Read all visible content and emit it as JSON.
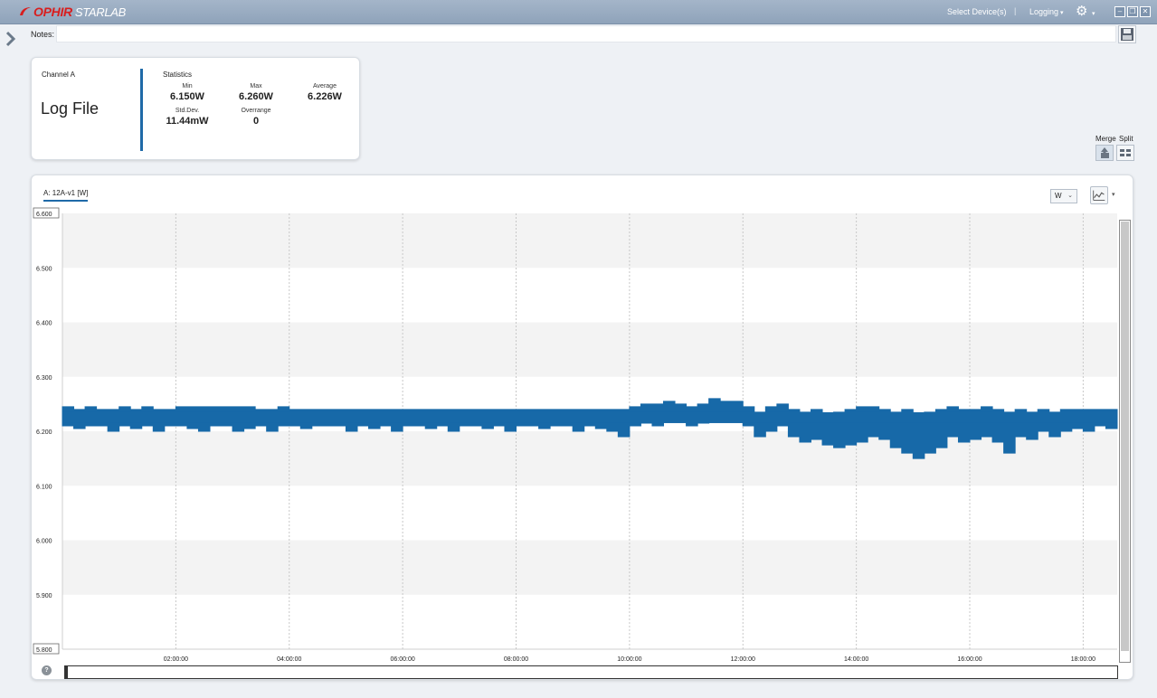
{
  "titlebar": {
    "brand": "OPHIR",
    "product": "STARLAB",
    "select_devices": "Select Device(s)",
    "separator": "|",
    "logging": "Logging",
    "caret": "▾",
    "minimize": "–",
    "restore": "❐",
    "close": "✕"
  },
  "notes": {
    "label": "Notes:",
    "value": ""
  },
  "stats_card": {
    "channel_label": "Channel A",
    "source": "Log File",
    "statistics_title": "Statistics",
    "min_label": "Min",
    "min_value": "6.150W",
    "max_label": "Max",
    "max_value": "6.260W",
    "average_label": "Average",
    "average_value": "6.226W",
    "std_label": "Std.Dev.",
    "std_value": "11.44mW",
    "overrange_label": "Overrange",
    "overrange_value": "0"
  },
  "view_mode": {
    "merge_label": "Merge",
    "split_label": "Split"
  },
  "graph": {
    "channel_tab": "A: 12A-v1 [W]",
    "unit": "W",
    "unit_caret": "⌄",
    "help": "?",
    "plot_type_caret": "▾"
  },
  "colors": {
    "series": "#1769a8",
    "band": "#f3f3f3",
    "accent": "#1f6aa8"
  },
  "chart_data": {
    "type": "line",
    "series": [
      {
        "x": [
          0,
          0.2,
          0.4,
          0.6,
          0.8,
          1.0,
          1.2,
          1.4,
          1.6,
          1.8,
          2.0,
          2.2,
          2.4,
          2.6,
          2.8,
          3.0,
          3.2,
          3.4,
          3.6,
          3.8,
          4.0,
          4.2,
          4.4,
          4.6,
          4.8,
          5.0,
          5.2,
          5.4,
          5.6,
          5.8,
          6.0,
          6.2,
          6.4,
          6.6,
          6.8,
          7.0,
          7.2,
          7.4,
          7.6,
          7.8,
          8.0,
          8.2,
          8.4,
          8.6,
          8.8,
          9.0,
          9.2,
          9.4,
          9.6,
          9.8,
          10.0,
          10.2,
          10.4,
          10.6,
          10.8,
          11.0,
          11.2,
          11.4,
          11.6,
          11.8,
          12.0,
          12.2,
          12.4,
          12.6,
          12.8,
          13.0,
          13.2,
          13.4,
          13.6,
          13.8,
          14.0,
          14.2,
          14.4,
          14.6,
          14.8,
          15.0,
          15.2,
          15.4,
          15.6,
          15.8,
          16.0,
          16.2,
          16.4,
          16.6,
          16.8,
          17.0,
          17.2,
          17.4,
          17.6,
          17.8,
          18.0,
          18.2,
          18.4,
          18.6
        ],
        "min": [
          6.21,
          6.205,
          6.21,
          6.21,
          6.2,
          6.21,
          6.205,
          6.21,
          6.2,
          6.21,
          6.21,
          6.205,
          6.2,
          6.21,
          6.21,
          6.2,
          6.205,
          6.21,
          6.2,
          6.21,
          6.21,
          6.205,
          6.21,
          6.21,
          6.21,
          6.2,
          6.21,
          6.205,
          6.21,
          6.2,
          6.21,
          6.21,
          6.205,
          6.21,
          6.2,
          6.21,
          6.21,
          6.205,
          6.21,
          6.2,
          6.21,
          6.21,
          6.205,
          6.21,
          6.21,
          6.2,
          6.21,
          6.205,
          6.2,
          6.19,
          6.21,
          6.215,
          6.21,
          6.22,
          6.22,
          6.21,
          6.215,
          6.225,
          6.225,
          6.22,
          6.21,
          6.19,
          6.2,
          6.21,
          6.19,
          6.18,
          6.185,
          6.175,
          6.17,
          6.175,
          6.18,
          6.19,
          6.185,
          6.17,
          6.16,
          6.15,
          6.16,
          6.17,
          6.19,
          6.18,
          6.185,
          6.19,
          6.18,
          6.16,
          6.19,
          6.185,
          6.2,
          6.19,
          6.2,
          6.205,
          6.2,
          6.21,
          6.205,
          6.21
        ],
        "max": [
          6.245,
          6.24,
          6.245,
          6.24,
          6.24,
          6.245,
          6.24,
          6.245,
          6.24,
          6.24,
          6.245,
          6.245,
          6.245,
          6.245,
          6.245,
          6.245,
          6.245,
          6.24,
          6.24,
          6.245,
          6.24,
          6.24,
          6.24,
          6.24,
          6.24,
          6.24,
          6.24,
          6.24,
          6.24,
          6.24,
          6.24,
          6.24,
          6.24,
          6.24,
          6.24,
          6.24,
          6.24,
          6.24,
          6.24,
          6.24,
          6.24,
          6.24,
          6.24,
          6.24,
          6.24,
          6.24,
          6.24,
          6.24,
          6.24,
          6.24,
          6.245,
          6.25,
          6.25,
          6.255,
          6.25,
          6.245,
          6.25,
          6.26,
          6.255,
          6.255,
          6.245,
          6.235,
          6.245,
          6.25,
          6.24,
          6.235,
          6.24,
          6.23,
          6.235,
          6.24,
          6.245,
          6.245,
          6.24,
          6.235,
          6.24,
          6.23,
          6.235,
          6.24,
          6.245,
          6.24,
          6.24,
          6.245,
          6.24,
          6.235,
          6.24,
          6.235,
          6.24,
          6.235,
          6.24,
          6.24,
          6.24,
          6.24,
          6.24,
          6.24
        ]
      }
    ],
    "x_ticks": [
      "02:00:00",
      "04:00:00",
      "06:00:00",
      "08:00:00",
      "10:00:00",
      "12:00:00",
      "14:00:00",
      "16:00:00",
      "18:00:00"
    ],
    "x_tick_values": [
      2,
      4,
      6,
      8,
      10,
      12,
      14,
      16,
      18
    ],
    "xlim": [
      0,
      18.6
    ],
    "y_ticks": [
      "6.600",
      "6.500",
      "6.400",
      "6.300",
      "6.200",
      "6.100",
      "6.000",
      "5.900",
      "5.800"
    ],
    "y_tick_values": [
      6.6,
      6.5,
      6.4,
      6.3,
      6.2,
      6.1,
      6.0,
      5.9,
      5.8
    ],
    "ylim": [
      5.8,
      6.6
    ],
    "ylabel": "",
    "xlabel": "",
    "grid": true
  }
}
